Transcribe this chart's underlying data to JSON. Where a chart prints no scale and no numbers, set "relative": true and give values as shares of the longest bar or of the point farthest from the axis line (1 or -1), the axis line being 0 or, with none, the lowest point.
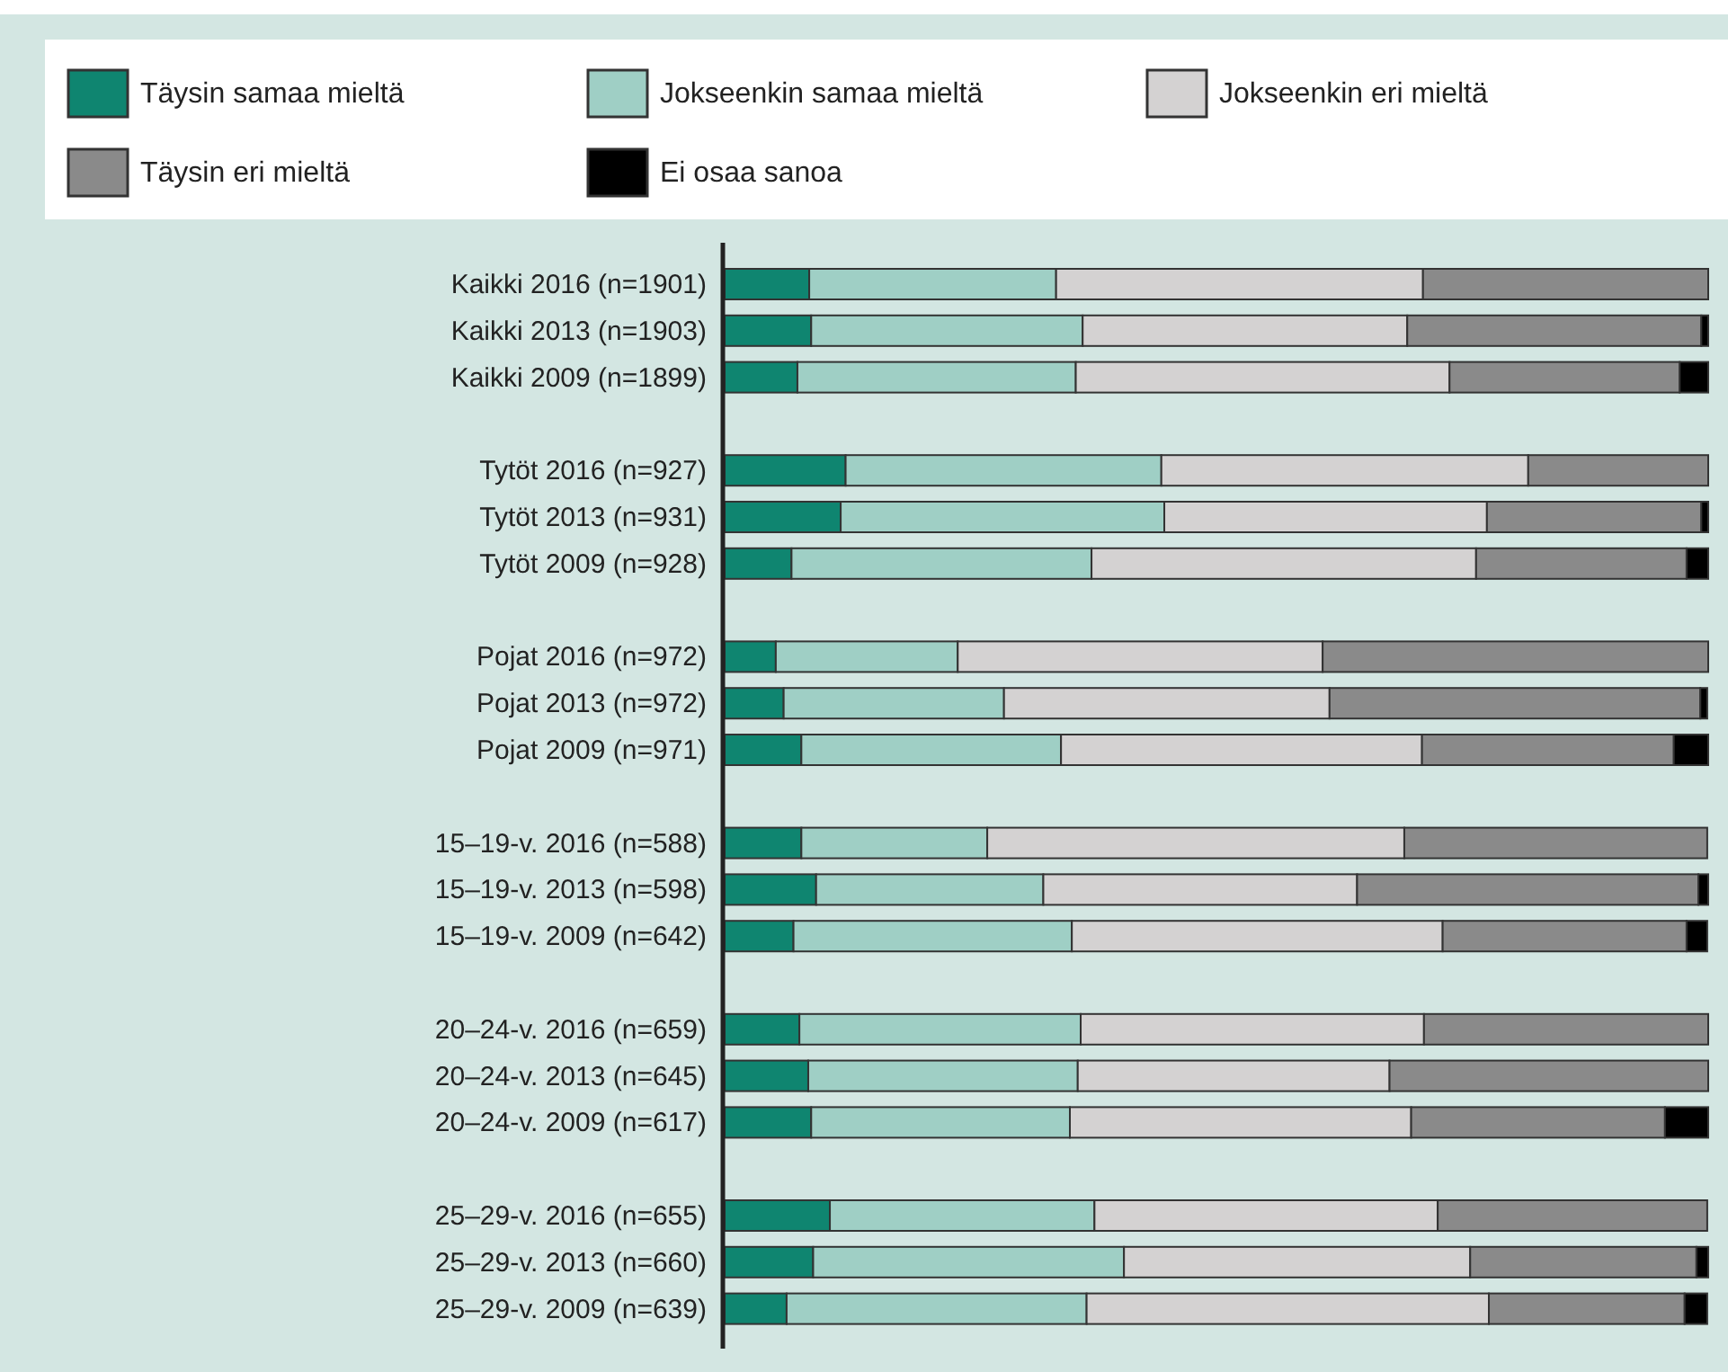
{
  "chart_data": {
    "type": "bar",
    "orientation": "horizontal",
    "stacked": true,
    "relative": true,
    "legend": "top",
    "categories": [
      "Kaikki 2016 (n=1901)",
      "Kaikki 2013 (n=1903)",
      "Kaikki 2009 (n=1899)",
      null,
      "Tytöt 2016 (n=927)",
      "Tytöt 2013 (n=931)",
      "Tytöt 2009 (n=928)",
      null,
      "Pojat 2016 (n=972)",
      "Pojat 2013 (n=972)",
      "Pojat 2009 (n=971)",
      null,
      "15–19-v. 2016 (n=588)",
      "15–19-v. 2013 (n=598)",
      "15–19-v. 2009 (n=642)",
      null,
      "20–24-v. 2016 (n=659)",
      "20–24-v. 2013 (n=645)",
      "20–24-v. 2009 (n=617)",
      null,
      "25–29-v. 2016 (n=655)",
      "25–29-v. 2013 (n=660)",
      "25–29-v. 2009  (n=639)"
    ],
    "series": [
      {
        "name": "Täysin samaa mieltä",
        "color": "#0f8570",
        "values": [
          0.086,
          0.088,
          0.074,
          null,
          0.123,
          0.118,
          0.068,
          null,
          0.052,
          0.06,
          0.078,
          null,
          0.078,
          0.093,
          0.07,
          null,
          0.076,
          0.085,
          0.088,
          null,
          0.107,
          0.09,
          0.063
        ]
      },
      {
        "name": "Jokseenkin samaa mieltä",
        "color": "#9fcfc5",
        "values": [
          0.251,
          0.276,
          0.283,
          null,
          0.321,
          0.329,
          0.305,
          null,
          0.185,
          0.224,
          0.264,
          null,
          0.189,
          0.231,
          0.283,
          null,
          0.286,
          0.274,
          0.263,
          null,
          0.269,
          0.316,
          0.305
        ]
      },
      {
        "name": "Jokseenkin eri mieltä",
        "color": "#d4d2d2",
        "values": [
          0.373,
          0.33,
          0.38,
          null,
          0.373,
          0.328,
          0.391,
          null,
          0.371,
          0.331,
          0.367,
          null,
          0.424,
          0.319,
          0.377,
          null,
          0.349,
          0.317,
          0.347,
          null,
          0.349,
          0.352,
          0.409
        ]
      },
      {
        "name": "Täysin eri mieltä",
        "color": "#8a8a8a",
        "values": [
          0.29,
          0.299,
          0.234,
          null,
          0.183,
          0.218,
          0.214,
          null,
          0.392,
          0.377,
          0.256,
          null,
          0.308,
          0.347,
          0.248,
          null,
          0.289,
          0.324,
          0.258,
          null,
          0.274,
          0.23,
          0.199
        ]
      },
      {
        "name": "Ei osaa sanoa",
        "color": "#000000",
        "values": [
          0,
          0.007,
          0.029,
          null,
          0,
          0.007,
          0.022,
          null,
          0,
          0.007,
          0.035,
          null,
          0,
          0.01,
          0.021,
          null,
          0,
          0,
          0.044,
          null,
          0,
          0.012,
          0.023
        ]
      }
    ]
  }
}
